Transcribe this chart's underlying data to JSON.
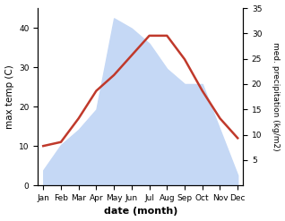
{
  "months": [
    "Jan",
    "Feb",
    "Mar",
    "Apr",
    "May",
    "Jun",
    "Jul",
    "Aug",
    "Sep",
    "Oct",
    "Nov",
    "Dec"
  ],
  "temp": [
    10,
    11,
    17,
    24,
    28,
    33,
    38,
    38,
    32,
    24,
    17,
    12
  ],
  "precip": [
    3,
    8,
    11,
    15,
    33,
    31,
    28,
    23,
    20,
    20,
    11,
    2
  ],
  "temp_color": "#c0392b",
  "precip_fill_color": "#c5d8f5",
  "xlabel": "date (month)",
  "ylabel_left": "max temp (C)",
  "ylabel_right": "med. precipitation (kg/m2)",
  "ylim_left": [
    0,
    45
  ],
  "ylim_right": [
    0,
    35
  ],
  "yticks_left": [
    0,
    10,
    20,
    30,
    40
  ],
  "yticks_right": [
    5,
    10,
    15,
    20,
    25,
    30,
    35
  ],
  "background_color": "#ffffff",
  "line_width": 1.8,
  "figsize": [
    3.18,
    2.47
  ],
  "dpi": 100
}
